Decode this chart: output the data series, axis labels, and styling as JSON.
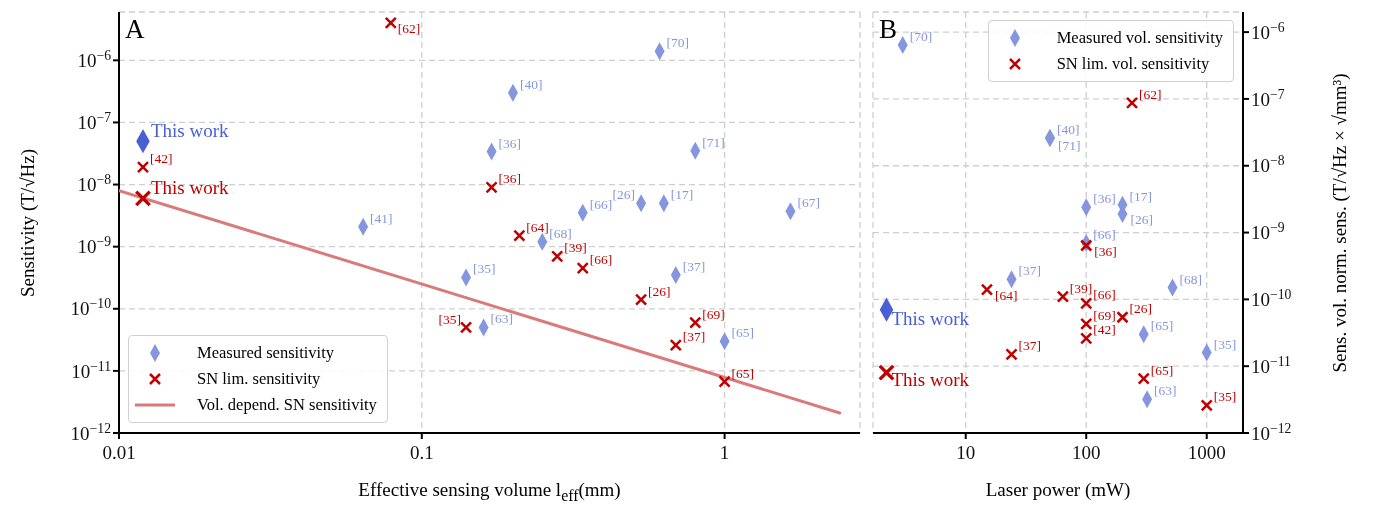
{
  "chart_data": [
    {
      "type": "scatter",
      "title": "A",
      "xlabel": "Effective sensing volume l$_{eff}$(mm)",
      "ylabel": "Sensitivity (T/√Hz)",
      "log": "xy",
      "grid": true,
      "legend": "bottom left",
      "xlim": [
        0.01,
        2.8
      ],
      "xticks": [
        0.01,
        0.1,
        1
      ],
      "ylim": [
        1e-12,
        6e-06
      ],
      "yticks": [
        {
          "value": 1e-12,
          "label": "10$^{−12}$"
        },
        {
          "value": 1e-11,
          "label": "10$^{−11}$"
        },
        {
          "value": 1e-10,
          "label": "10$^{−10}$"
        },
        {
          "value": 1e-09,
          "label": "10$^{−9}$"
        },
        {
          "value": 1e-08,
          "label": "10$^{−8}$"
        },
        {
          "value": 1e-07,
          "label": "10$^{−7}$"
        },
        {
          "value": 1e-06,
          "label": "10$^{−6}$"
        }
      ],
      "series": [
        {
          "name": "Measured sensitivity",
          "marker": "diamond",
          "color": "#8596de",
          "x": [
            0.064,
            0.14,
            0.16,
            0.17,
            0.2,
            0.25,
            0.34,
            0.53,
            0.61,
            0.63,
            0.69,
            0.8,
            1.0,
            1.65
          ],
          "values": [
            2.1e-09,
            3.2e-10,
            5e-11,
            3.4e-08,
            3e-07,
            1.2e-09,
            3.5e-09,
            5e-09,
            1.4e-06,
            5e-09,
            3.5e-10,
            3.5e-08,
            3e-11,
            3.7e-09
          ]
        },
        {
          "name": "SN lim. sensitivity",
          "marker": "cross",
          "color": "#c00000",
          "x": [
            0.012,
            0.079,
            0.14,
            0.17,
            0.21,
            0.28,
            0.34,
            0.53,
            0.69,
            0.8,
            1.0
          ],
          "values": [
            1.9e-08,
            4e-06,
            5e-11,
            9e-09,
            1.5e-09,
            7e-10,
            4.5e-10,
            1.4e-10,
            2.6e-11,
            6e-11,
            6.7e-12
          ]
        },
        {
          "name": "Vol. depend. SN sensitivity",
          "type": "line",
          "marker": "none",
          "color": "#d97b7b",
          "x": [
            0.01,
            2.4
          ],
          "values": [
            8e-09,
            2.1e-12
          ]
        },
        {
          "marker": "diamond",
          "color": "#4a5fd3",
          "x": [
            0.012
          ],
          "values": [
            5e-08
          ]
        },
        {
          "marker": "cross",
          "color": "#c00000",
          "x": [
            0.012
          ],
          "values": [
            6e-09
          ]
        }
      ],
      "annotations": [
        {
          "text": "This work",
          "x": 0.012,
          "y": 5e-08
        },
        {
          "text": "This work",
          "x": 0.012,
          "y": 6e-09
        },
        {
          "text": "[42]",
          "x": 0.012,
          "y": 1.9e-08
        },
        {
          "text": "[62]",
          "x": 0.079,
          "y": 4e-06
        },
        {
          "text": "[35]",
          "x": 0.14,
          "y": 5e-11
        },
        {
          "text": "[41]",
          "x": 0.064,
          "y": 2.1e-09
        },
        {
          "text": "[35]",
          "x": 0.14,
          "y": 3.2e-10
        },
        {
          "text": "[63]",
          "x": 0.16,
          "y": 5e-11
        },
        {
          "text": "[36]",
          "x": 0.17,
          "y": 3.4e-08
        },
        {
          "text": "[40]",
          "x": 0.2,
          "y": 3e-07
        },
        {
          "text": "[68]",
          "x": 0.25,
          "y": 1.2e-09
        },
        {
          "text": "[66]",
          "x": 0.34,
          "y": 3.5e-09
        },
        {
          "text": "[26]",
          "x": 0.53,
          "y": 5e-09
        },
        {
          "text": "[70]",
          "x": 0.61,
          "y": 1.4e-06
        },
        {
          "text": "[17]",
          "x": 0.63,
          "y": 5e-09
        },
        {
          "text": "[37]",
          "x": 0.69,
          "y": 3.5e-10
        },
        {
          "text": "[71]",
          "x": 0.8,
          "y": 3.5e-08
        },
        {
          "text": "[65]",
          "x": 1.0,
          "y": 3e-11
        },
        {
          "text": "[67]",
          "x": 1.65,
          "y": 3.7e-09
        },
        {
          "text": "[36]",
          "x": 0.17,
          "y": 9e-09
        },
        {
          "text": "[64]",
          "x": 0.21,
          "y": 1.5e-09
        },
        {
          "text": "[39]",
          "x": 0.28,
          "y": 7e-10
        },
        {
          "text": "[66]",
          "x": 0.34,
          "y": 4.5e-10
        },
        {
          "text": "[26]",
          "x": 0.53,
          "y": 1.4e-10
        },
        {
          "text": "[37]",
          "x": 0.69,
          "y": 2.6e-11
        },
        {
          "text": "[69]",
          "x": 0.8,
          "y": 6e-11
        },
        {
          "text": "[65]",
          "x": 1.0,
          "y": 6.7e-12
        }
      ]
    },
    {
      "type": "scatter",
      "title": "B",
      "xlabel": "Laser power (mW)",
      "ylabel": "Sens. vol. norm. sens. (T/√Hz × √mm³)",
      "log": "xy",
      "grid": true,
      "legend": "top right",
      "xlim": [
        1.7,
        2000
      ],
      "xticks": [
        10,
        100,
        1000
      ],
      "ylim": [
        1e-12,
        2e-06
      ],
      "yticks": [
        {
          "value": 1e-12,
          "label": "10$^{−12}$"
        },
        {
          "value": 1e-11,
          "label": "10$^{−11}$"
        },
        {
          "value": 1e-10,
          "label": "10$^{−10}$"
        },
        {
          "value": 1e-09,
          "label": "10$^{−9}$"
        },
        {
          "value": 1e-08,
          "label": "10$^{−8}$"
        },
        {
          "value": 1e-07,
          "label": "10$^{−7}$"
        },
        {
          "value": 1e-06,
          "label": "10$^{−6}$"
        }
      ],
      "series": [
        {
          "name": "Measured vol. sensitivity",
          "marker": "diamond",
          "color": "#8596de",
          "x": [
            3,
            24,
            50,
            50,
            100,
            100,
            200,
            200,
            300,
            320,
            520,
            1000
          ],
          "values": [
            6.4e-07,
            2e-10,
            2.6e-08,
            2.6e-08,
            2.4e-09,
            7e-10,
            2.6e-09,
            1.9e-09,
            3e-11,
            3.2e-12,
            1.5e-10,
            1.6e-11
          ]
        },
        {
          "name": "SN lim. vol. sensitivity",
          "marker": "cross",
          "color": "#c00000",
          "x": [
            15,
            24,
            64,
            100,
            100,
            100,
            100,
            200,
            240,
            300,
            1000
          ],
          "values": [
            1.4e-10,
            1.5e-11,
            1.1e-10,
            6.4e-10,
            8.7e-11,
            4.3e-11,
            2.6e-11,
            5.4e-11,
            8.7e-08,
            6.5e-12,
            2.6e-12
          ]
        },
        {
          "marker": "diamond",
          "color": "#4a5fd3",
          "x": [
            2.2
          ],
          "values": [
            7e-11
          ]
        },
        {
          "marker": "cross",
          "color": "#c00000",
          "x": [
            2.2
          ],
          "values": [
            8e-12
          ]
        }
      ],
      "annotations": [
        {
          "text": "This work",
          "x": 2.2,
          "y": 7e-11
        },
        {
          "text": "This work",
          "x": 2.2,
          "y": 8e-12
        },
        {
          "text": "[70]",
          "x": 3,
          "y": 6.4e-07
        },
        {
          "text": "[37]",
          "x": 24,
          "y": 2e-10
        },
        {
          "text": "[40]",
          "x": 50,
          "y": 2.6e-08
        },
        {
          "text": "[71]",
          "x": 50,
          "y": 2.6e-08
        },
        {
          "text": "[36]",
          "x": 100,
          "y": 2.4e-09
        },
        {
          "text": "[66]",
          "x": 100,
          "y": 7e-10
        },
        {
          "text": "[17]",
          "x": 200,
          "y": 2.6e-09
        },
        {
          "text": "[26]",
          "x": 200,
          "y": 1.9e-09
        },
        {
          "text": "[65]",
          "x": 300,
          "y": 3e-11
        },
        {
          "text": "[63]",
          "x": 320,
          "y": 3.2e-12
        },
        {
          "text": "[68]",
          "x": 520,
          "y": 1.5e-10
        },
        {
          "text": "[35]",
          "x": 1000,
          "y": 1.6e-11
        },
        {
          "text": "[64]",
          "x": 15,
          "y": 1.4e-10
        },
        {
          "text": "[37]",
          "x": 24,
          "y": 1.5e-11
        },
        {
          "text": "[39]",
          "x": 64,
          "y": 1.1e-10
        },
        {
          "text": "[36]",
          "x": 100,
          "y": 6.4e-10
        },
        {
          "text": "[66]",
          "x": 100,
          "y": 8.7e-11
        },
        {
          "text": "[69]",
          "x": 100,
          "y": 4.3e-11
        },
        {
          "text": "[42]",
          "x": 100,
          "y": 2.6e-11
        },
        {
          "text": "[26]",
          "x": 200,
          "y": 5.4e-11
        },
        {
          "text": "[62]",
          "x": 240,
          "y": 8.7e-08
        },
        {
          "text": "[65]",
          "x": 300,
          "y": 6.5e-12
        },
        {
          "text": "[35]",
          "x": 1000,
          "y": 2.6e-12
        }
      ]
    }
  ]
}
